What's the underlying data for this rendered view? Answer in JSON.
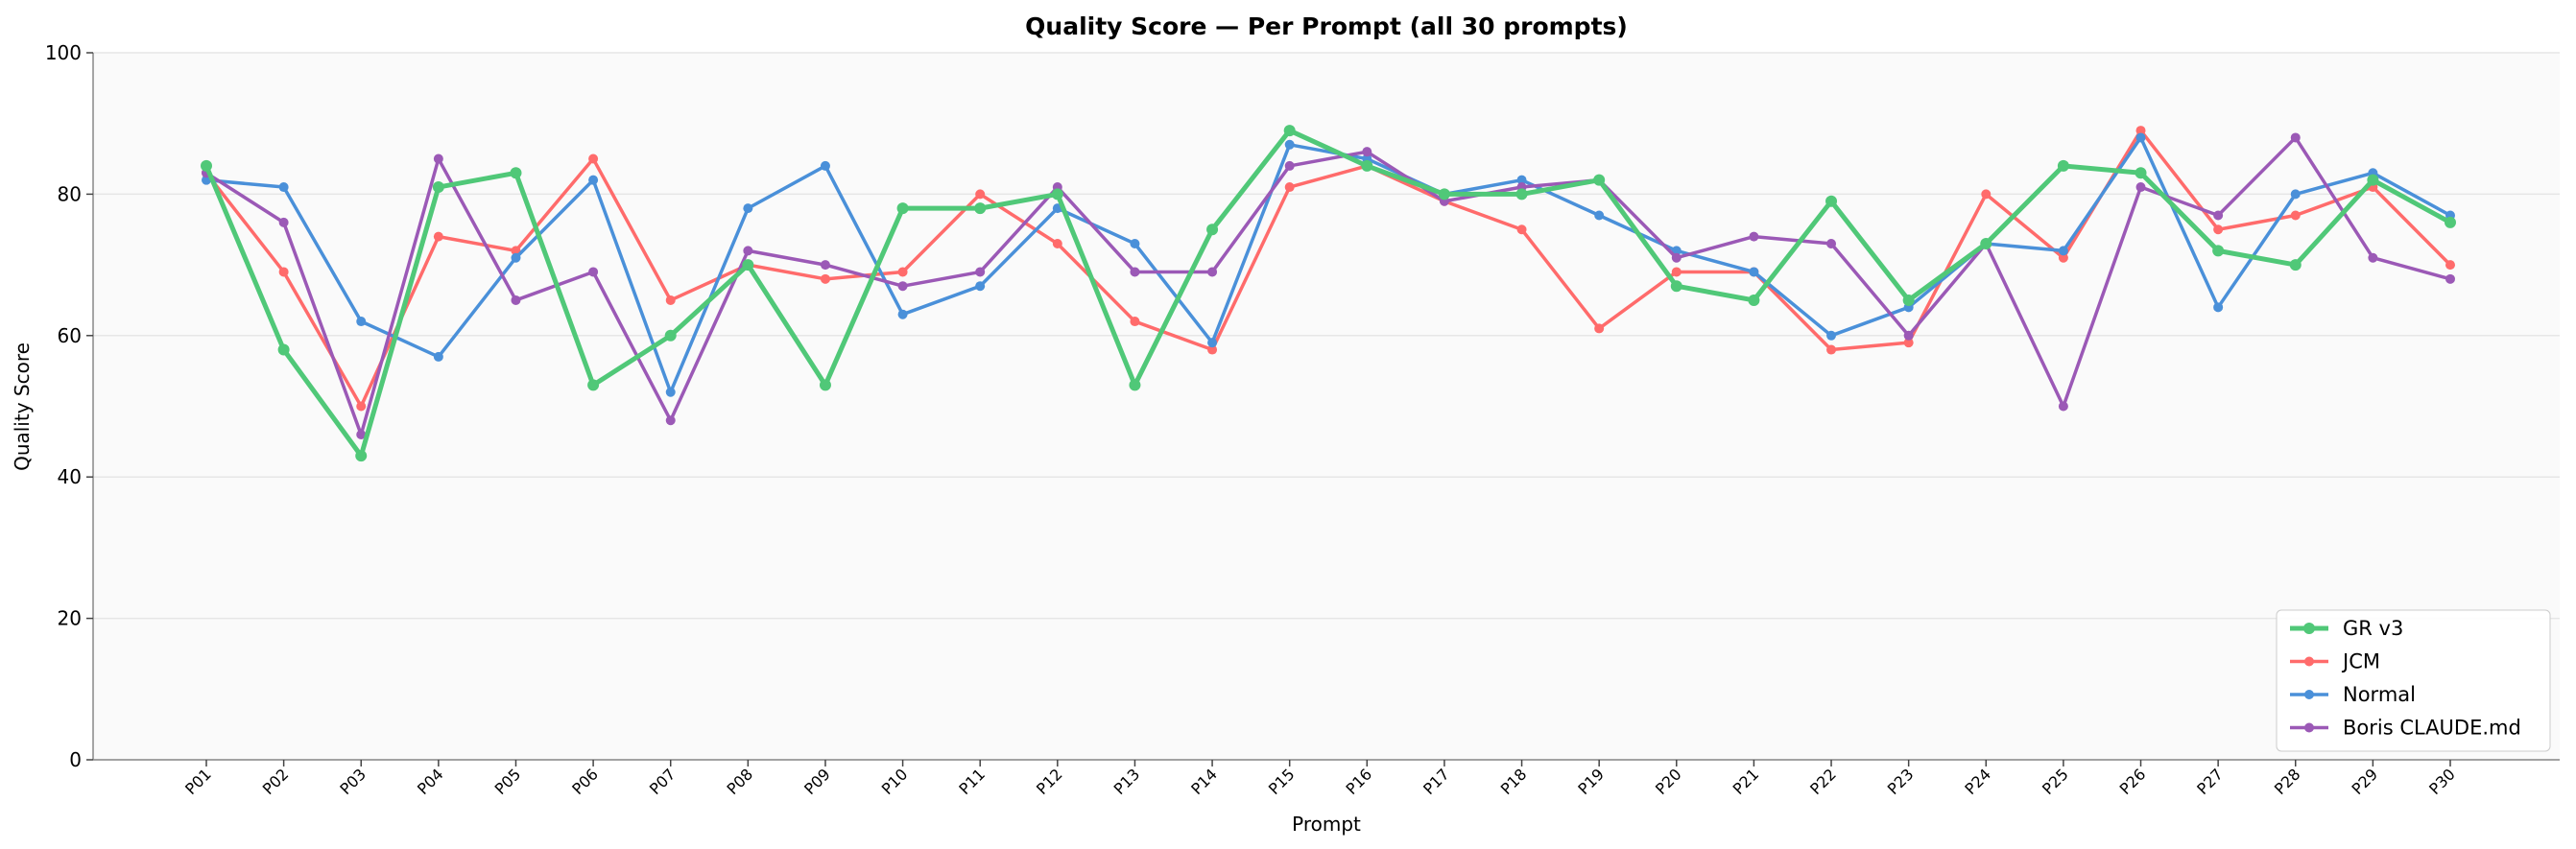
{
  "chart_data": {
    "type": "line",
    "title": "Quality Score — Per Prompt (all 30 prompts)",
    "xlabel": "Prompt",
    "ylabel": "Quality Score",
    "ylim": [
      0,
      100
    ],
    "yticks": [
      0,
      20,
      40,
      60,
      80,
      100
    ],
    "grid": "horizontal",
    "legend_placement": "lower-right",
    "categories": [
      "P01",
      "P02",
      "P03",
      "P04",
      "P05",
      "P06",
      "P07",
      "P08",
      "P09",
      "P10",
      "P11",
      "P12",
      "P13",
      "P14",
      "P15",
      "P16",
      "P17",
      "P18",
      "P19",
      "P20",
      "P21",
      "P22",
      "P23",
      "P24",
      "P25",
      "P26",
      "P27",
      "P28",
      "P29",
      "P30"
    ],
    "series": [
      {
        "name": "GR v3",
        "color": "#50c878",
        "values": [
          84,
          58,
          43,
          81,
          83,
          53,
          60,
          70,
          53,
          78,
          78,
          80,
          53,
          75,
          89,
          84,
          80,
          80,
          82,
          67,
          65,
          79,
          65,
          73,
          84,
          83,
          72,
          70,
          82,
          76
        ]
      },
      {
        "name": "JCM",
        "color": "#ff6b6b",
        "values": [
          83,
          69,
          50,
          74,
          72,
          85,
          65,
          70,
          68,
          69,
          80,
          73,
          62,
          58,
          81,
          84,
          79,
          75,
          61,
          69,
          69,
          58,
          59,
          80,
          71,
          89,
          75,
          77,
          81,
          70
        ]
      },
      {
        "name": "Normal",
        "color": "#4a90d9",
        "values": [
          82,
          81,
          62,
          57,
          71,
          82,
          52,
          78,
          84,
          63,
          67,
          78,
          73,
          59,
          87,
          85,
          80,
          82,
          77,
          72,
          69,
          60,
          64,
          73,
          72,
          88,
          64,
          80,
          83,
          77
        ]
      },
      {
        "name": "Boris CLAUDE.md",
        "color": "#9b59b6",
        "values": [
          83,
          76,
          46,
          85,
          65,
          69,
          48,
          72,
          70,
          67,
          69,
          81,
          69,
          69,
          84,
          86,
          79,
          81,
          82,
          71,
          74,
          73,
          60,
          73,
          50,
          81,
          77,
          88,
          71,
          68
        ]
      }
    ]
  }
}
